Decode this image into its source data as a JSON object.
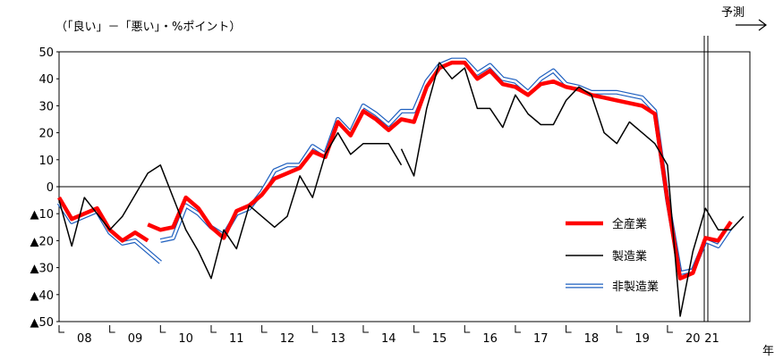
{
  "chart_data": {
    "type": "line",
    "unit_label": "（「良い」－「悪い」・%ポイント）",
    "forecast_label": "予測",
    "year_axis_label": "年",
    "ylim": [
      -50,
      50
    ],
    "y_ticks": [
      50,
      40,
      30,
      20,
      10,
      0,
      -10,
      -20,
      -30,
      -40,
      -50
    ],
    "y_tick_labels": [
      "50",
      "40",
      "30",
      "20",
      "10",
      "0",
      "▲10",
      "▲20",
      "▲30",
      "▲40",
      "▲50"
    ],
    "x_range": [
      0,
      51.5
    ],
    "year_labels": [
      {
        "text": "08",
        "x": 2
      },
      {
        "text": "09",
        "x": 6
      },
      {
        "text": "10",
        "x": 10
      },
      {
        "text": "11",
        "x": 14
      },
      {
        "text": "12",
        "x": 18
      },
      {
        "text": "13",
        "x": 22
      },
      {
        "text": "14",
        "x": 26
      },
      {
        "text": "15",
        "x": 30
      },
      {
        "text": "16",
        "x": 34
      },
      {
        "text": "17",
        "x": 38
      },
      {
        "text": "18",
        "x": 42
      },
      {
        "text": "19",
        "x": 46
      },
      {
        "text": "20",
        "x": 50
      },
      {
        "text": "21",
        "x": 51.5
      }
    ],
    "legend_position": "right",
    "forecast_start_x": 50.9,
    "series": [
      {
        "name": "全産業",
        "color": "#ff0000",
        "segments": [
          [
            [
              0,
              -4
            ],
            [
              1,
              -12
            ],
            [
              2,
              -10
            ],
            [
              3,
              -8
            ],
            [
              4,
              -16
            ],
            [
              5,
              -20
            ],
            [
              6,
              -17
            ],
            [
              7,
              -20
            ]
          ],
          [
            [
              7,
              -14
            ],
            [
              8,
              -16
            ],
            [
              9,
              -15
            ],
            [
              10,
              -4
            ],
            [
              11,
              -8
            ],
            [
              12,
              -15
            ],
            [
              13,
              -19
            ],
            [
              14,
              -9
            ],
            [
              15,
              -7
            ],
            [
              16,
              -3
            ],
            [
              17,
              3
            ],
            [
              18,
              5
            ],
            [
              19,
              7
            ],
            [
              20,
              13
            ],
            [
              21,
              11
            ],
            [
              22,
              24
            ],
            [
              23,
              19
            ],
            [
              24,
              28
            ],
            [
              25,
              25
            ],
            [
              26,
              21
            ],
            [
              27,
              25
            ],
            [
              28,
              24
            ],
            [
              29,
              37
            ],
            [
              30,
              44
            ],
            [
              31,
              46
            ],
            [
              32,
              46
            ],
            [
              33,
              40
            ],
            [
              34,
              43
            ],
            [
              35,
              38
            ],
            [
              36,
              37
            ],
            [
              37,
              34
            ],
            [
              38,
              38
            ],
            [
              39,
              39
            ],
            [
              40,
              37
            ],
            [
              41,
              36
            ],
            [
              42,
              34
            ],
            [
              43,
              33
            ],
            [
              44,
              32
            ],
            [
              45,
              31
            ],
            [
              46,
              30
            ],
            [
              47,
              27
            ],
            [
              48,
              -5
            ],
            [
              49,
              -34
            ],
            [
              50,
              -32
            ],
            [
              51,
              -19
            ],
            [
              52,
              -20
            ],
            [
              53,
              -13
            ]
          ]
        ]
      },
      {
        "name": "製造業",
        "color": "#000000",
        "segments": [
          [
            [
              0,
              -5
            ],
            [
              1,
              -22
            ],
            [
              2,
              -4
            ],
            [
              3,
              -10
            ],
            [
              4,
              -16
            ],
            [
              5,
              -11
            ],
            [
              6,
              -3
            ],
            [
              7,
              5
            ],
            [
              8,
              8
            ],
            [
              9,
              -4
            ],
            [
              10,
              -16
            ],
            [
              11,
              -24
            ],
            [
              12,
              -34
            ],
            [
              13,
              -16
            ],
            [
              14,
              -23
            ],
            [
              15,
              -7
            ],
            [
              16,
              -11
            ],
            [
              17,
              -15
            ],
            [
              18,
              -11
            ],
            [
              19,
              4
            ],
            [
              20,
              -4
            ],
            [
              21,
              12
            ],
            [
              22,
              20
            ],
            [
              23,
              12
            ],
            [
              24,
              16
            ],
            [
              25,
              16
            ],
            [
              26,
              16
            ],
            [
              27,
              8
            ]
          ],
          [
            [
              27,
              14
            ],
            [
              28,
              4
            ],
            [
              29,
              29
            ],
            [
              30,
              46
            ],
            [
              31,
              40
            ],
            [
              32,
              44
            ],
            [
              33,
              29
            ],
            [
              34,
              29
            ],
            [
              35,
              22
            ],
            [
              36,
              34
            ],
            [
              37,
              27
            ],
            [
              38,
              23
            ],
            [
              39,
              23
            ],
            [
              40,
              32
            ],
            [
              41,
              37
            ],
            [
              42,
              34
            ],
            [
              43,
              20
            ],
            [
              44,
              16
            ],
            [
              45,
              24
            ],
            [
              46,
              20
            ],
            [
              47,
              16
            ],
            [
              48,
              8
            ],
            [
              49,
              -48
            ],
            [
              50,
              -24
            ],
            [
              51,
              -8
            ],
            [
              52,
              -16
            ],
            [
              53,
              -16
            ],
            [
              54,
              -11
            ]
          ]
        ]
      },
      {
        "name": "非製造業",
        "color": "#1e5fbf",
        "segments": [
          [
            [
              0,
              -6
            ],
            [
              1,
              -13
            ],
            [
              2,
              -11
            ],
            [
              3,
              -9
            ],
            [
              4,
              -17
            ],
            [
              5,
              -21
            ],
            [
              6,
              -20
            ],
            [
              7,
              -24
            ],
            [
              8,
              -28
            ]
          ],
          [
            [
              8,
              -20
            ],
            [
              9,
              -19
            ],
            [
              10,
              -7
            ],
            [
              11,
              -10
            ],
            [
              12,
              -15
            ],
            [
              13,
              -18
            ],
            [
              14,
              -10
            ],
            [
              15,
              -8
            ],
            [
              16,
              -2
            ],
            [
              17,
              6
            ],
            [
              18,
              8
            ],
            [
              19,
              8
            ],
            [
              20,
              15
            ],
            [
              21,
              12
            ],
            [
              22,
              25
            ],
            [
              23,
              20
            ],
            [
              24,
              30
            ],
            [
              25,
              27
            ],
            [
              26,
              23
            ],
            [
              27,
              28
            ],
            [
              28,
              28
            ],
            [
              29,
              39
            ],
            [
              30,
              45
            ],
            [
              31,
              47
            ],
            [
              32,
              47
            ],
            [
              33,
              42
            ],
            [
              34,
              45
            ],
            [
              35,
              40
            ],
            [
              36,
              39
            ],
            [
              37,
              35
            ],
            [
              38,
              40
            ],
            [
              39,
              43
            ],
            [
              40,
              38
            ],
            [
              41,
              37
            ],
            [
              42,
              35
            ],
            [
              43,
              35
            ],
            [
              44,
              35
            ],
            [
              45,
              34
            ],
            [
              46,
              33
            ],
            [
              47,
              28
            ],
            [
              48,
              -5
            ],
            [
              49,
              -32
            ],
            [
              50,
              -31
            ],
            [
              51,
              -20
            ],
            [
              52,
              -22
            ],
            [
              53,
              -15
            ]
          ]
        ]
      }
    ]
  }
}
